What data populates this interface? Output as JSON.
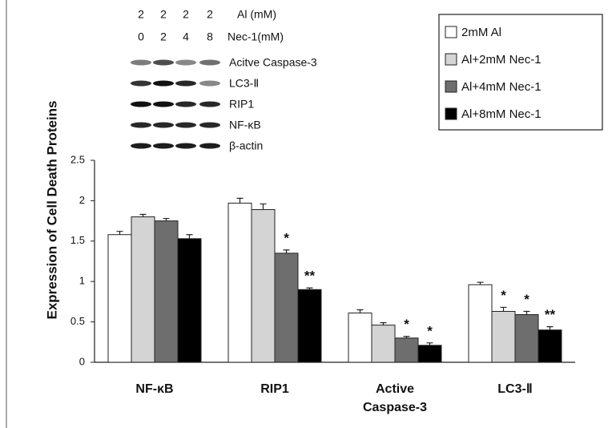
{
  "chart_data": {
    "type": "bar",
    "y_label": "Expression of Cell Death Proteins",
    "categories": [
      "NF-κB",
      "RIP1",
      "Active Caspase-3",
      "LC3-Ⅱ"
    ],
    "series": [
      {
        "name": "2mM Al",
        "color": "#ffffff",
        "values": [
          1.58,
          1.97,
          0.61,
          0.96
        ],
        "errors": [
          0.04,
          0.06,
          0.04,
          0.03
        ],
        "significance": [
          null,
          null,
          null,
          null
        ]
      },
      {
        "name": "Al+2mM Nec-1",
        "color": "#d4d4d4",
        "values": [
          1.8,
          1.89,
          0.46,
          0.63
        ],
        "errors": [
          0.03,
          0.07,
          0.03,
          0.05
        ],
        "significance": [
          null,
          null,
          null,
          "*"
        ]
      },
      {
        "name": "Al+4mM Nec-1",
        "color": "#6e6e6e",
        "values": [
          1.75,
          1.35,
          0.3,
          0.59
        ],
        "errors": [
          0.03,
          0.04,
          0.02,
          0.04
        ],
        "significance": [
          null,
          "*",
          "*",
          "*"
        ]
      },
      {
        "name": "Al+8mM Nec-1",
        "color": "#000000",
        "values": [
          1.53,
          0.9,
          0.21,
          0.4
        ],
        "errors": [
          0.05,
          0.02,
          0.03,
          0.04
        ],
        "significance": [
          null,
          "**",
          "*",
          "**"
        ]
      }
    ],
    "ylim": [
      0,
      2.5
    ],
    "yticks": [
      0,
      0.5,
      1,
      1.5,
      2,
      2.5
    ],
    "legend": "top-right",
    "blot": {
      "al_label": "Al (mM)",
      "al_doses": [
        "2",
        "2",
        "2",
        "2"
      ],
      "nec_label": "Nec-1(mM)",
      "nec_doses": [
        "0",
        "2",
        "4",
        "8"
      ],
      "bands": [
        "Acitve Caspase-3",
        "LC3-Ⅱ",
        "RIP1",
        "NF-κB",
        "β-actin"
      ]
    }
  }
}
